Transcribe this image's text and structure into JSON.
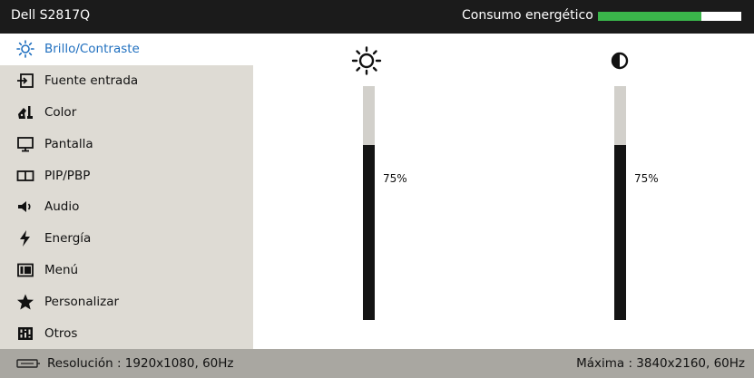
{
  "header": {
    "title": "Dell S2817Q",
    "energy_label": "Consumo energético",
    "energy_level": 0.72,
    "energy_color": "#3ab54a"
  },
  "sidebar": {
    "selected_index": 0,
    "items": [
      {
        "label": "Brillo/Contraste",
        "icon": "brightness-icon"
      },
      {
        "label": "Fuente entrada",
        "icon": "input-source-icon"
      },
      {
        "label": "Color",
        "icon": "color-icon"
      },
      {
        "label": "Pantalla",
        "icon": "display-icon"
      },
      {
        "label": "PIP/PBP",
        "icon": "pip-icon"
      },
      {
        "label": "Audio",
        "icon": "audio-icon"
      },
      {
        "label": "Energía",
        "icon": "energy-icon"
      },
      {
        "label": "Menú",
        "icon": "menu-icon"
      },
      {
        "label": "Personalizar",
        "icon": "star-icon"
      },
      {
        "label": "Otros",
        "icon": "others-icon"
      }
    ]
  },
  "main": {
    "brightness": {
      "value": 75,
      "label": "75%"
    },
    "contrast": {
      "value": 75,
      "label": "75%"
    }
  },
  "status": {
    "resolution": "Resolución : 1920x1080, 60Hz",
    "maximum": "Máxima : 3840x2160, 60Hz"
  },
  "colors": {
    "accent": "#1f6fbf",
    "sidebar_bg": "#dedbd4",
    "status_bg": "#a9a7a1"
  }
}
